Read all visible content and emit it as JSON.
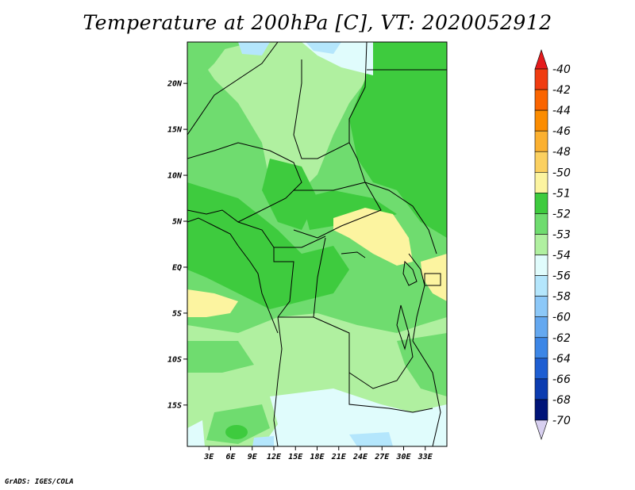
{
  "title": "Temperature at 200hPa [C], VT: 2020052912",
  "credit": "GrADS: IGES/COLA",
  "map": {
    "lon_range": [
      0,
      36
    ],
    "lat_range": [
      -19.5,
      24.5
    ],
    "x_ticks": [
      {
        "lon": 3,
        "label": "3E"
      },
      {
        "lon": 6,
        "label": "6E"
      },
      {
        "lon": 9,
        "label": "9E"
      },
      {
        "lon": 12,
        "label": "12E"
      },
      {
        "lon": 15,
        "label": "15E"
      },
      {
        "lon": 18,
        "label": "18E"
      },
      {
        "lon": 21,
        "label": "21E"
      },
      {
        "lon": 24,
        "label": "24E"
      },
      {
        "lon": 27,
        "label": "27E"
      },
      {
        "lon": 30,
        "label": "30E"
      },
      {
        "lon": 33,
        "label": "33E"
      }
    ],
    "y_ticks": [
      {
        "lat": 20,
        "label": "20N"
      },
      {
        "lat": 15,
        "label": "15N"
      },
      {
        "lat": 10,
        "label": "10N"
      },
      {
        "lat": 5,
        "label": "5N"
      },
      {
        "lat": 0,
        "label": "EQ"
      },
      {
        "lat": -5,
        "label": "5S"
      },
      {
        "lat": -10,
        "label": "10S"
      },
      {
        "lat": -15,
        "label": "15S"
      }
    ]
  },
  "colorbar": {
    "labels": [
      "-40",
      "-42",
      "-44",
      "-46",
      "-48",
      "-50",
      "-51",
      "-52",
      "-53",
      "-54",
      "-56",
      "-58",
      "-60",
      "-62",
      "-64",
      "-66",
      "-68",
      "-70"
    ],
    "colors": [
      "#e41a1c",
      "#f03c10",
      "#fa6400",
      "#fb8c00",
      "#fbb030",
      "#fbd060",
      "#fcf4a0",
      "#3ecb3e",
      "#6fdc6f",
      "#b0f0a0",
      "#e0fcfc",
      "#b4e6fc",
      "#8cc8f8",
      "#64a8f0",
      "#3c86e6",
      "#1e5ed2",
      "#0c3cb0",
      "#001478",
      "#d8d0f0"
    ]
  }
}
